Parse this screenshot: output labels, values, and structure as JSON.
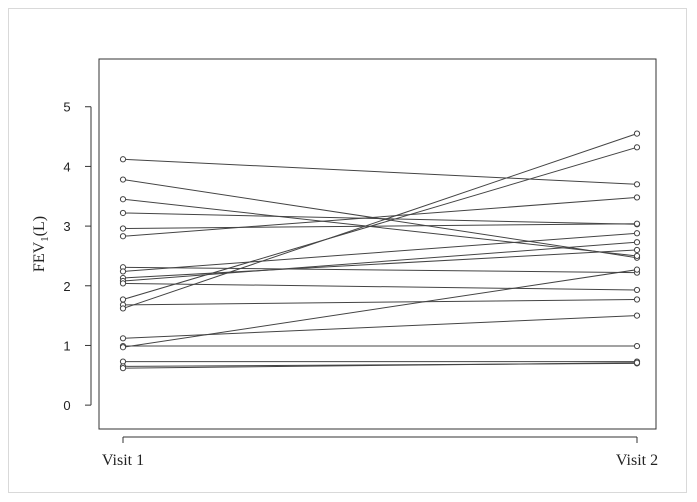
{
  "chart_data": {
    "type": "line",
    "title": "",
    "xlabel": "",
    "ylabel": "FEV",
    "ylabel_subscript": "1",
    "ylabel_suffix": "(L)",
    "categories": [
      "Visit 1",
      "Visit 2"
    ],
    "ylim": [
      -0.4,
      5.8
    ],
    "yticks": [
      0,
      1,
      2,
      3,
      4,
      5
    ],
    "grid": false,
    "legend": "none",
    "line_color": "#444444",
    "series": [
      {
        "values": [
          4.12,
          3.7
        ]
      },
      {
        "values": [
          3.78,
          2.47
        ]
      },
      {
        "values": [
          3.45,
          2.5
        ]
      },
      {
        "values": [
          3.22,
          3.03
        ]
      },
      {
        "values": [
          2.96,
          3.04
        ]
      },
      {
        "values": [
          2.83,
          3.48
        ]
      },
      {
        "values": [
          2.31,
          2.22
        ]
      },
      {
        "values": [
          2.24,
          2.88
        ]
      },
      {
        "values": [
          2.13,
          2.6
        ]
      },
      {
        "values": [
          2.08,
          2.73
        ]
      },
      {
        "values": [
          2.04,
          1.93
        ]
      },
      {
        "values": [
          1.77,
          4.32
        ]
      },
      {
        "values": [
          1.68,
          1.77
        ]
      },
      {
        "values": [
          1.62,
          4.55
        ]
      },
      {
        "values": [
          1.12,
          1.5
        ]
      },
      {
        "values": [
          0.99,
          0.99
        ]
      },
      {
        "values": [
          0.97,
          2.27
        ]
      },
      {
        "values": [
          0.73,
          0.73
        ]
      },
      {
        "values": [
          0.65,
          0.7
        ]
      },
      {
        "values": [
          0.62,
          0.71
        ]
      }
    ]
  }
}
